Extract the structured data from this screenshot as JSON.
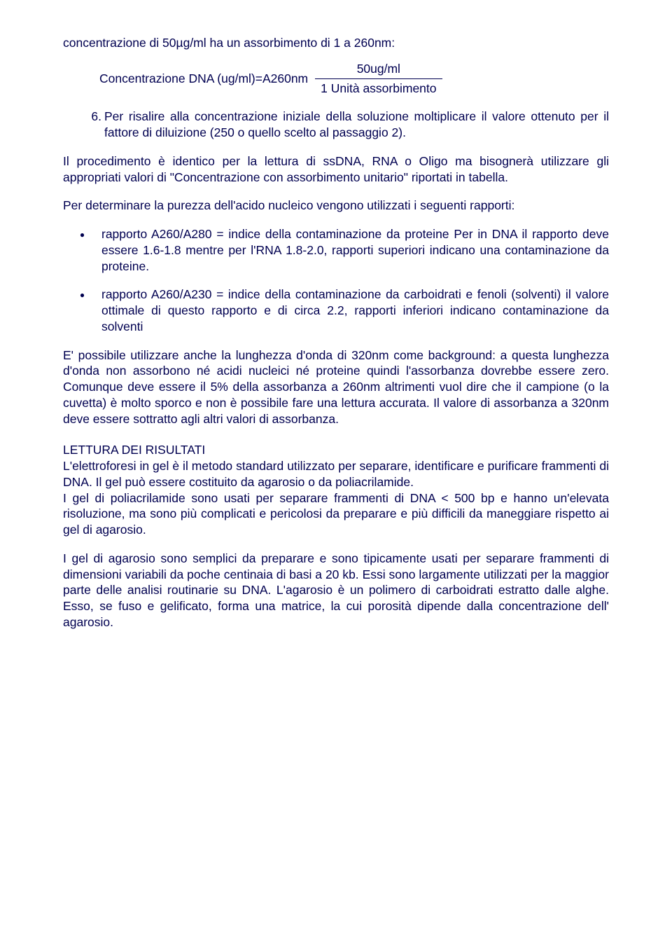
{
  "text_color": "#000050",
  "intro": "concentrazione di 50µg/ml ha un assorbimento di 1 a 260nm:",
  "formula": {
    "left": "Concentrazione DNA (ug/ml)=A260nm",
    "numerator": "50ug/ml",
    "denominator": "1 Unità assorbimento"
  },
  "item6_num": "6.",
  "item6_body": "Per risalire alla concentrazione iniziale della soluzione moltiplicare il valore ottenuto per il fattore di diluizione (250 o quello scelto al passaggio 2).",
  "para1": "Il procedimento è identico per la lettura di ssDNA, RNA o Oligo ma bisognerà utilizzare gli appropriati valori di \"Concentrazione con assorbimento unitario\" riportati in tabella.",
  "para2": "Per determinare la purezza dell'acido nucleico vengono utilizzati i seguenti rapporti:",
  "bullet1": "rapporto A260/A280 = indice della contaminazione da proteine Per in DNA il rapporto deve essere 1.6-1.8 mentre per l'RNA 1.8-2.0, rapporti superiori indicano una contaminazione da proteine.",
  "bullet2": "rapporto A260/A230 = indice della contaminazione da carboidrati e fenoli (solventi) il valore ottimale di questo rapporto e di circa 2.2, rapporti inferiori indicano contaminazione da solventi",
  "para3": "E' possibile utilizzare anche la lunghezza d'onda di 320nm come background: a questa lunghezza d'onda non assorbono né acidi nucleici né proteine quindi l'assorbanza dovrebbe essere zero. Comunque deve essere il 5% della assorbanza a 260nm altrimenti vuol dire che il campione (o la cuvetta) è molto sporco e non è possibile fare una lettura accurata. Il valore di assorbanza a 320nm deve essere sottratto agli altri valori di assorbanza.",
  "section_title": "LETTURA DEI RISULTATI",
  "para4": "L'elettroforesi in gel è il metodo standard utilizzato per separare, identificare e purificare frammenti di DNA. Il gel può essere costituito da agarosio o da poliacrilamide.",
  "para5": "I gel di poliacrilamide sono usati per separare frammenti di DNA < 500 bp e hanno un'elevata risoluzione, ma sono più complicati e pericolosi da preparare e più difficili da maneggiare rispetto ai gel di agarosio.",
  "para6": "I gel di agarosio sono semplici da preparare e sono tipicamente usati per separare frammenti di dimensioni variabili da poche centinaia di basi a 20 kb. Essi sono largamente utilizzati per la maggior parte delle analisi routinarie su DNA. L'agarosio è un polimero di carboidrati estratto dalle alghe. Esso, se fuso e gelificato, forma una matrice, la cui porosità dipende dalla concentrazione dell' agarosio."
}
